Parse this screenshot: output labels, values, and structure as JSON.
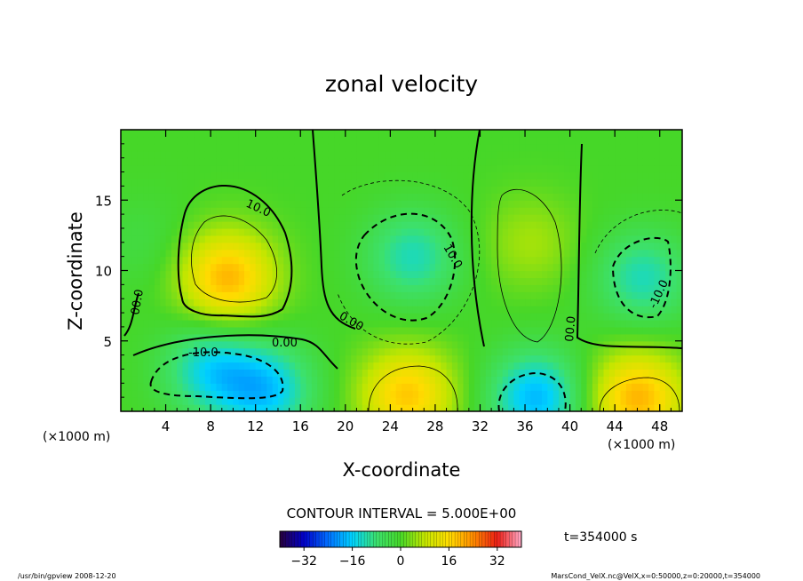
{
  "chart_data": {
    "type": "heatmap",
    "subtype": "filled-contour",
    "title": "zonal velocity",
    "xlabel": "X-coordinate",
    "ylabel": "Z-coordinate",
    "x_unit": "(×1000 m)",
    "x_ticks": [
      4,
      8,
      12,
      16,
      20,
      24,
      28,
      32,
      36,
      40,
      44,
      48
    ],
    "y_ticks": [
      5,
      10,
      15
    ],
    "xlim": [
      0,
      50
    ],
    "ylim": [
      0,
      20
    ],
    "contour_interval_text": "CONTOUR INTERVAL = 5.000E+00",
    "contour_labels": [
      "10.0",
      "00.0",
      "0.00",
      "0.00",
      "-10.0",
      "10.0",
      "00.0",
      "-10.0"
    ],
    "colorbar": {
      "range": [
        -40,
        40
      ],
      "ticks": [
        -32,
        -16,
        0,
        16,
        32
      ],
      "tick_labels": [
        "−32",
        "−16",
        "0",
        "16",
        "32"
      ]
    },
    "time_label": "t=354000 s",
    "footer_left": "/usr/bin/gpview   2008-12-20",
    "footer_right": "MarsCond_VelX.nc@VelX,x=0:50000,z=0:20000,t=354000",
    "features": [
      {
        "x": 9.5,
        "z": 9.5,
        "value": 20
      },
      {
        "x": 26.0,
        "z": 11.0,
        "value": -12
      },
      {
        "x": 36.5,
        "z": 12.0,
        "value": 6
      },
      {
        "x": 46.5,
        "z": 9.5,
        "value": -12
      },
      {
        "x": 8.0,
        "z": 3.0,
        "value": -14
      },
      {
        "x": 13.0,
        "z": 1.5,
        "value": -16
      },
      {
        "x": 25.5,
        "z": 1.2,
        "value": 18
      },
      {
        "x": 37.0,
        "z": 1.0,
        "value": -18
      },
      {
        "x": 46.0,
        "z": 1.0,
        "value": 20
      },
      {
        "x": 2.0,
        "z": 12.0,
        "value": -3
      }
    ]
  }
}
